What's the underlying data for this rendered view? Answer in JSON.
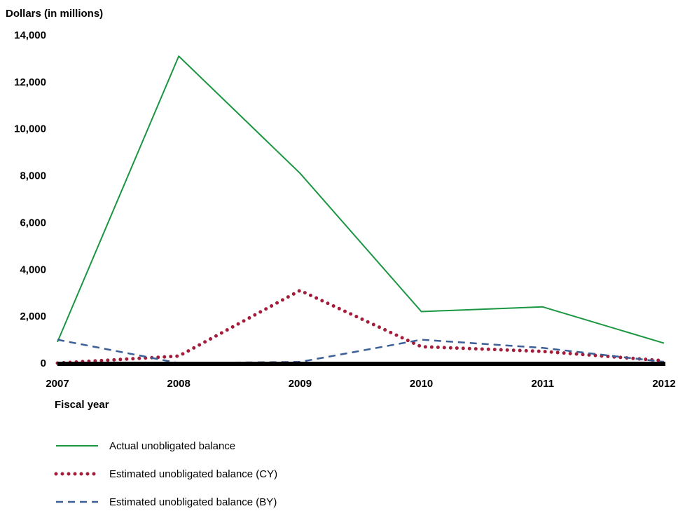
{
  "chart_data": {
    "type": "line",
    "ylabel": "Dollars (in millions)",
    "xlabel": "Fiscal year",
    "x": [
      "2007",
      "2008",
      "2009",
      "2010",
      "2011",
      "2012"
    ],
    "ylim": [
      0,
      14000
    ],
    "yticks": [
      0,
      2000,
      4000,
      6000,
      8000,
      10000,
      12000,
      14000
    ],
    "ytick_labels": [
      "0",
      "2,000",
      "4,000",
      "6,000",
      "8,000",
      "10,000",
      "12,000",
      "14,000"
    ],
    "grid": false,
    "legend_position": "bottom",
    "series": [
      {
        "name": "Actual unobligated balance",
        "values": [
          900,
          13100,
          8100,
          2200,
          2400,
          850
        ],
        "color": "#1a9641",
        "style": "solid"
      },
      {
        "name": "Estimated unobligated balance (CY)",
        "values": [
          0,
          300,
          3100,
          700,
          500,
          100
        ],
        "color": "#a31d3a",
        "style": "dotted"
      },
      {
        "name": "Estimated unobligated balance (BY)",
        "values": [
          1000,
          0,
          50,
          1000,
          650,
          50
        ],
        "color": "#3b5f96",
        "style": "dashed"
      }
    ]
  }
}
